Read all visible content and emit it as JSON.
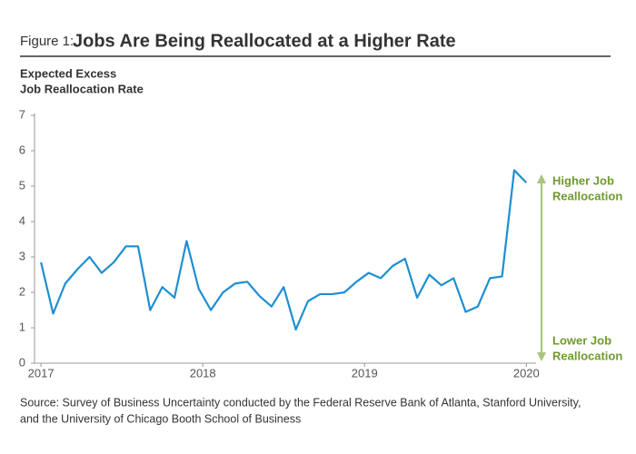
{
  "chart_data": {
    "type": "line",
    "title_prefix": "Figure 1:",
    "title": "Jobs Are Being Reallocated at a Higher Rate",
    "y_label": [
      "Expected Excess",
      "Job Reallocation Rate"
    ],
    "annotations": {
      "top": [
        "Higher Job",
        "Reallocation"
      ],
      "bottom": [
        "Lower Job",
        "Reallocation"
      ]
    },
    "source": [
      "Source: Survey of Business Uncertainty conducted by the Federal Reserve Bank of Atlanta, Stanford University,",
      "and the University of Chicago Booth School of Business"
    ],
    "x": [
      2017.0,
      2017.075,
      2017.15,
      2017.225,
      2017.3,
      2017.375,
      2017.45,
      2017.525,
      2017.6,
      2017.675,
      2017.75,
      2017.825,
      2017.9,
      2017.975,
      2018.05,
      2018.125,
      2018.2,
      2018.275,
      2018.35,
      2018.425,
      2018.5,
      2018.575,
      2018.65,
      2018.725,
      2018.8,
      2018.875,
      2018.95,
      2019.025,
      2019.1,
      2019.175,
      2019.25,
      2019.325,
      2019.4,
      2019.475,
      2019.55,
      2019.625,
      2019.7,
      2019.775,
      2019.85,
      2019.925,
      2020.0
    ],
    "series": [
      {
        "name": "Expected excess job reallocation rate",
        "color": "#1e8fd0",
        "values": [
          2.85,
          1.4,
          2.25,
          2.65,
          3.0,
          2.55,
          2.85,
          3.3,
          3.3,
          1.5,
          2.15,
          1.85,
          3.45,
          2.1,
          1.5,
          2.0,
          2.25,
          2.3,
          1.9,
          1.6,
          2.15,
          0.95,
          1.75,
          1.95,
          1.95,
          2.0,
          2.3,
          2.55,
          2.4,
          2.75,
          2.95,
          1.85,
          2.5,
          2.2,
          2.4,
          1.45,
          1.6,
          2.4,
          2.45,
          5.45,
          5.1
        ]
      }
    ],
    "xlim": [
      2016.96,
      2020.06
    ],
    "xticks": [
      2017,
      2018,
      2019,
      2020
    ],
    "ylim": [
      0,
      7
    ],
    "yticks": [
      0,
      1,
      2,
      3,
      4,
      5,
      6,
      7
    ],
    "annotation_color": "#6f9a2e",
    "arrow_color": "#a9c47c"
  }
}
